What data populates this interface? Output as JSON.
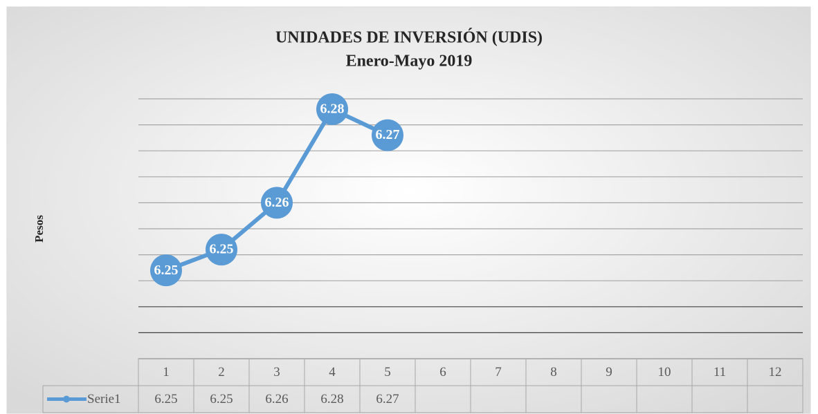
{
  "chart_data": {
    "type": "line",
    "title": "UNIDADES DE INVERSIÓN (UDIS)",
    "subtitle": "Enero-Mayo 2019",
    "y_label": "Pesos",
    "categories": [
      "1",
      "2",
      "3",
      "4",
      "5",
      "6",
      "7",
      "8",
      "9",
      "10",
      "11",
      "12"
    ],
    "series": [
      {
        "name": "Serie1",
        "color": "#5b9bd5",
        "values": [
          6.247,
          6.251,
          6.26,
          6.278,
          6.273,
          null,
          null,
          null,
          null,
          null,
          null,
          null
        ],
        "value_labels": [
          "6.25",
          "6.25",
          "6.26",
          "6.28",
          "6.27",
          null,
          null,
          null,
          null,
          null,
          null,
          null
        ]
      }
    ],
    "ylim": [
      6.23,
      6.28
    ],
    "yticks": [
      6.23,
      6.235,
      6.24,
      6.245,
      6.25,
      6.255,
      6.26,
      6.265,
      6.27,
      6.275,
      6.28
    ],
    "grid": true,
    "data_table": true
  }
}
